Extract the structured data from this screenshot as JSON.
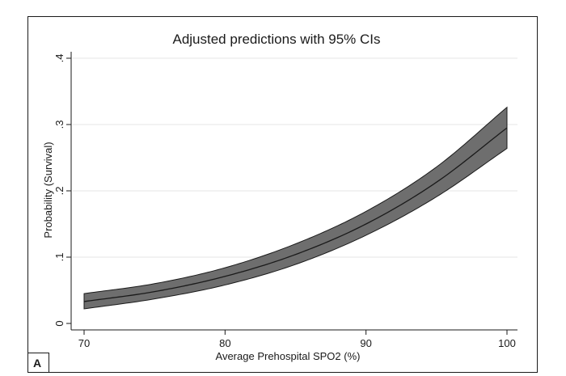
{
  "panel_label": "A",
  "chart_data": {
    "type": "line",
    "title": "Adjusted predictions with 95% CIs",
    "xlabel": "Average Prehospital SPO2 (%)",
    "ylabel": "Probability (Survival)",
    "xlim": [
      70,
      100
    ],
    "ylim": [
      0,
      0.4
    ],
    "x_ticks": [
      70,
      80,
      90,
      100
    ],
    "x_tick_labels": [
      "70",
      "80",
      "90",
      "100"
    ],
    "y_ticks": [
      0,
      0.1,
      0.2,
      0.3,
      0.4
    ],
    "y_tick_labels": [
      "0",
      ".1",
      ".2",
      ".3",
      ".4"
    ],
    "grid": true,
    "legend": "none",
    "colors": {
      "band_fill": "#6e6e6e",
      "line": "#1a1a1a",
      "grid": "#e6e6e6"
    },
    "x": [
      70,
      75,
      80,
      85,
      90,
      95,
      100
    ],
    "series": [
      {
        "values": [
          0.033,
          0.048,
          0.071,
          0.104,
          0.15,
          0.213,
          0.295
        ]
      }
    ],
    "ci_lower": [
      0.022,
      0.037,
      0.058,
      0.089,
      0.133,
      0.191,
      0.264
    ],
    "ci_upper": [
      0.045,
      0.06,
      0.084,
      0.12,
      0.169,
      0.236,
      0.326
    ]
  }
}
